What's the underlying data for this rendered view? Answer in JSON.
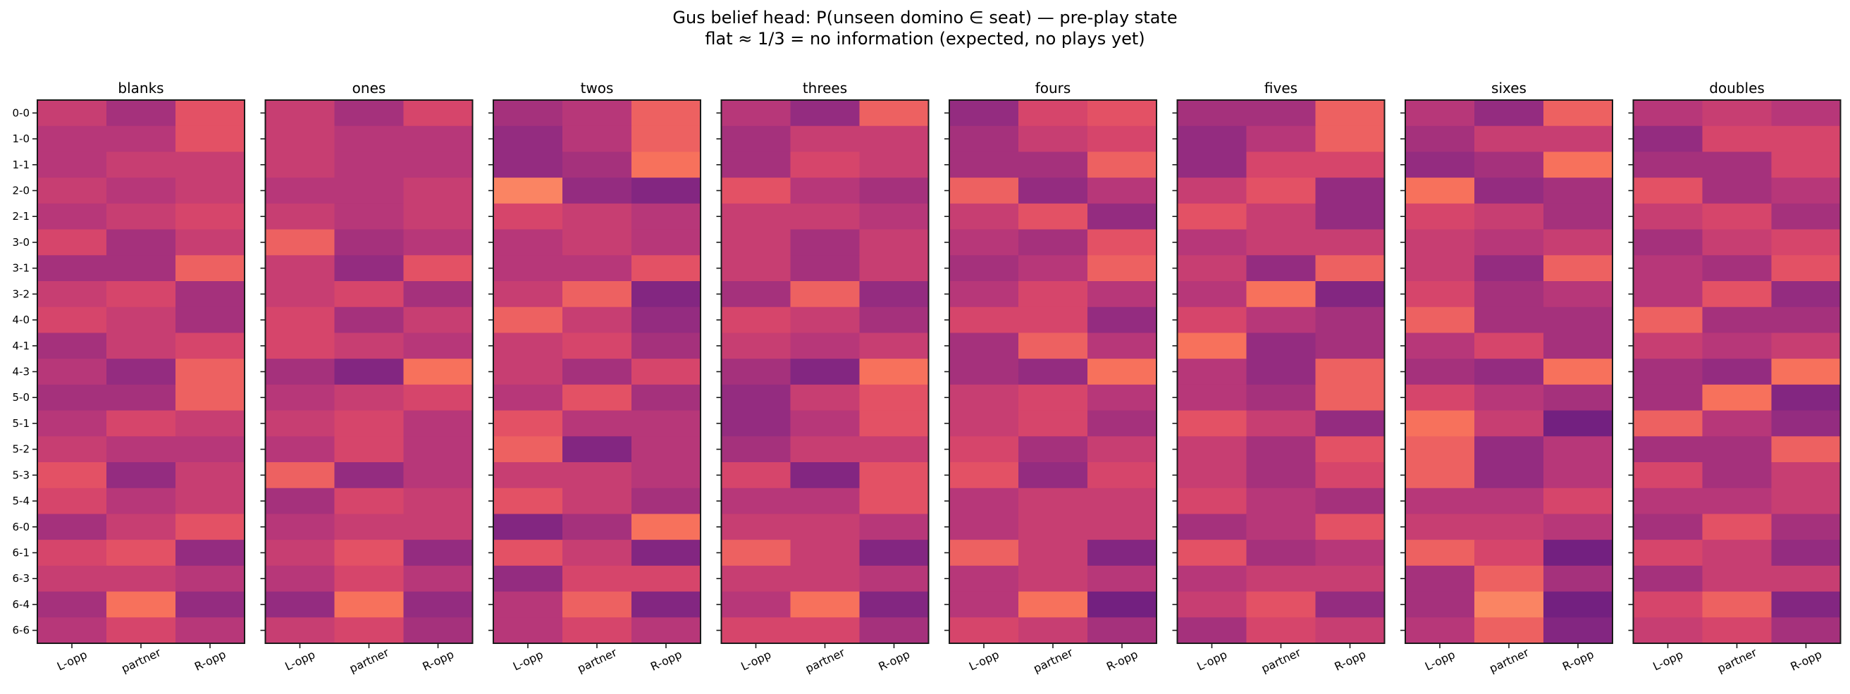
{
  "chart_data": {
    "type": "heatmap",
    "title_line1": "Gus belief head: P(unseen domino ∈ seat) — pre-play state",
    "title_line2": "flat ≈ 1/3 = no information (expected, no plays yet)",
    "colormap": "magma",
    "value_range_estimate": [
      0.29,
      0.38
    ],
    "columns": [
      "L-opp",
      "partner",
      "R-opp"
    ],
    "rows": [
      "0-0",
      "1-0",
      "1-1",
      "2-0",
      "2-1",
      "3-0",
      "3-1",
      "3-2",
      "4-0",
      "4-1",
      "4-3",
      "5-0",
      "5-1",
      "5-2",
      "5-3",
      "5-4",
      "6-0",
      "6-1",
      "6-3",
      "6-4",
      "6-6"
    ],
    "panels": [
      {
        "title": "blanks",
        "values": [
          [
            0.335,
            0.321,
            0.349
          ],
          [
            0.328,
            0.328,
            0.349
          ],
          [
            0.328,
            0.335,
            0.335
          ],
          [
            0.335,
            0.328,
            0.335
          ],
          [
            0.328,
            0.335,
            0.342
          ],
          [
            0.342,
            0.321,
            0.335
          ],
          [
            0.321,
            0.321,
            0.356
          ],
          [
            0.335,
            0.342,
            0.321
          ],
          [
            0.342,
            0.335,
            0.321
          ],
          [
            0.321,
            0.335,
            0.342
          ],
          [
            0.328,
            0.314,
            0.356
          ],
          [
            0.321,
            0.321,
            0.356
          ],
          [
            0.328,
            0.342,
            0.335
          ],
          [
            0.335,
            0.328,
            0.328
          ],
          [
            0.349,
            0.314,
            0.335
          ],
          [
            0.342,
            0.328,
            0.335
          ],
          [
            0.321,
            0.335,
            0.349
          ],
          [
            0.342,
            0.349,
            0.314
          ],
          [
            0.335,
            0.335,
            0.328
          ],
          [
            0.321,
            0.363,
            0.314
          ],
          [
            0.328,
            0.342,
            0.328
          ]
        ]
      },
      {
        "title": "ones",
        "values": [
          [
            0.335,
            0.321,
            0.342
          ],
          [
            0.335,
            0.328,
            0.328
          ],
          [
            0.335,
            0.328,
            0.328
          ],
          [
            0.328,
            0.328,
            0.335
          ],
          [
            0.335,
            0.328,
            0.335
          ],
          [
            0.356,
            0.321,
            0.328
          ],
          [
            0.335,
            0.314,
            0.349
          ],
          [
            0.335,
            0.342,
            0.321
          ],
          [
            0.342,
            0.321,
            0.335
          ],
          [
            0.342,
            0.335,
            0.328
          ],
          [
            0.321,
            0.307,
            0.363
          ],
          [
            0.328,
            0.335,
            0.342
          ],
          [
            0.335,
            0.342,
            0.328
          ],
          [
            0.328,
            0.342,
            0.328
          ],
          [
            0.356,
            0.314,
            0.328
          ],
          [
            0.321,
            0.342,
            0.335
          ],
          [
            0.328,
            0.335,
            0.335
          ],
          [
            0.335,
            0.349,
            0.314
          ],
          [
            0.328,
            0.342,
            0.328
          ],
          [
            0.314,
            0.363,
            0.314
          ],
          [
            0.335,
            0.342,
            0.321
          ]
        ]
      },
      {
        "title": "twos",
        "values": [
          [
            0.321,
            0.328,
            0.356
          ],
          [
            0.314,
            0.328,
            0.356
          ],
          [
            0.314,
            0.321,
            0.363
          ],
          [
            0.37,
            0.314,
            0.307
          ],
          [
            0.342,
            0.335,
            0.328
          ],
          [
            0.328,
            0.335,
            0.328
          ],
          [
            0.328,
            0.328,
            0.349
          ],
          [
            0.335,
            0.356,
            0.307
          ],
          [
            0.356,
            0.335,
            0.314
          ],
          [
            0.335,
            0.342,
            0.321
          ],
          [
            0.335,
            0.321,
            0.342
          ],
          [
            0.328,
            0.349,
            0.321
          ],
          [
            0.349,
            0.328,
            0.328
          ],
          [
            0.356,
            0.307,
            0.328
          ],
          [
            0.335,
            0.335,
            0.328
          ],
          [
            0.349,
            0.335,
            0.321
          ],
          [
            0.307,
            0.321,
            0.363
          ],
          [
            0.349,
            0.335,
            0.307
          ],
          [
            0.314,
            0.342,
            0.342
          ],
          [
            0.328,
            0.356,
            0.307
          ],
          [
            0.328,
            0.342,
            0.328
          ]
        ]
      },
      {
        "title": "threes",
        "values": [
          [
            0.328,
            0.314,
            0.356
          ],
          [
            0.321,
            0.335,
            0.335
          ],
          [
            0.321,
            0.342,
            0.335
          ],
          [
            0.349,
            0.328,
            0.321
          ],
          [
            0.335,
            0.335,
            0.328
          ],
          [
            0.335,
            0.321,
            0.335
          ],
          [
            0.335,
            0.321,
            0.335
          ],
          [
            0.321,
            0.356,
            0.314
          ],
          [
            0.342,
            0.335,
            0.321
          ],
          [
            0.335,
            0.328,
            0.335
          ],
          [
            0.321,
            0.307,
            0.363
          ],
          [
            0.314,
            0.335,
            0.349
          ],
          [
            0.314,
            0.328,
            0.349
          ],
          [
            0.321,
            0.335,
            0.335
          ],
          [
            0.342,
            0.307,
            0.349
          ],
          [
            0.328,
            0.328,
            0.349
          ],
          [
            0.335,
            0.335,
            0.328
          ],
          [
            0.356,
            0.335,
            0.307
          ],
          [
            0.335,
            0.335,
            0.328
          ],
          [
            0.328,
            0.363,
            0.307
          ],
          [
            0.342,
            0.342,
            0.321
          ]
        ]
      },
      {
        "title": "fours",
        "values": [
          [
            0.314,
            0.342,
            0.349
          ],
          [
            0.321,
            0.335,
            0.342
          ],
          [
            0.321,
            0.321,
            0.356
          ],
          [
            0.356,
            0.314,
            0.328
          ],
          [
            0.335,
            0.349,
            0.314
          ],
          [
            0.328,
            0.321,
            0.349
          ],
          [
            0.321,
            0.328,
            0.356
          ],
          [
            0.328,
            0.342,
            0.328
          ],
          [
            0.342,
            0.342,
            0.314
          ],
          [
            0.321,
            0.356,
            0.328
          ],
          [
            0.321,
            0.314,
            0.363
          ],
          [
            0.335,
            0.342,
            0.328
          ],
          [
            0.335,
            0.342,
            0.321
          ],
          [
            0.342,
            0.321,
            0.335
          ],
          [
            0.349,
            0.314,
            0.342
          ],
          [
            0.328,
            0.335,
            0.335
          ],
          [
            0.328,
            0.335,
            0.335
          ],
          [
            0.356,
            0.335,
            0.307
          ],
          [
            0.328,
            0.335,
            0.328
          ],
          [
            0.328,
            0.363,
            0.3
          ],
          [
            0.342,
            0.335,
            0.321
          ]
        ]
      },
      {
        "title": "fives",
        "values": [
          [
            0.321,
            0.321,
            0.356
          ],
          [
            0.314,
            0.328,
            0.356
          ],
          [
            0.314,
            0.342,
            0.342
          ],
          [
            0.335,
            0.349,
            0.314
          ],
          [
            0.349,
            0.335,
            0.314
          ],
          [
            0.328,
            0.335,
            0.335
          ],
          [
            0.335,
            0.314,
            0.356
          ],
          [
            0.328,
            0.363,
            0.307
          ],
          [
            0.342,
            0.328,
            0.321
          ],
          [
            0.363,
            0.314,
            0.321
          ],
          [
            0.328,
            0.314,
            0.356
          ],
          [
            0.328,
            0.321,
            0.356
          ],
          [
            0.349,
            0.335,
            0.314
          ],
          [
            0.335,
            0.321,
            0.349
          ],
          [
            0.335,
            0.321,
            0.342
          ],
          [
            0.342,
            0.328,
            0.321
          ],
          [
            0.321,
            0.328,
            0.349
          ],
          [
            0.349,
            0.321,
            0.328
          ],
          [
            0.328,
            0.335,
            0.335
          ],
          [
            0.335,
            0.349,
            0.314
          ],
          [
            0.321,
            0.342,
            0.335
          ]
        ]
      },
      {
        "title": "sixes",
        "values": [
          [
            0.328,
            0.314,
            0.356
          ],
          [
            0.321,
            0.335,
            0.335
          ],
          [
            0.314,
            0.321,
            0.363
          ],
          [
            0.363,
            0.314,
            0.321
          ],
          [
            0.342,
            0.335,
            0.321
          ],
          [
            0.335,
            0.328,
            0.335
          ],
          [
            0.335,
            0.314,
            0.356
          ],
          [
            0.342,
            0.321,
            0.328
          ],
          [
            0.356,
            0.321,
            0.321
          ],
          [
            0.328,
            0.342,
            0.321
          ],
          [
            0.321,
            0.314,
            0.363
          ],
          [
            0.342,
            0.328,
            0.321
          ],
          [
            0.363,
            0.335,
            0.3
          ],
          [
            0.356,
            0.314,
            0.328
          ],
          [
            0.356,
            0.314,
            0.328
          ],
          [
            0.328,
            0.328,
            0.342
          ],
          [
            0.335,
            0.335,
            0.328
          ],
          [
            0.356,
            0.342,
            0.3
          ],
          [
            0.321,
            0.356,
            0.321
          ],
          [
            0.321,
            0.37,
            0.3
          ],
          [
            0.328,
            0.356,
            0.307
          ]
        ]
      },
      {
        "title": "doubles",
        "values": [
          [
            0.328,
            0.335,
            0.328
          ],
          [
            0.314,
            0.342,
            0.342
          ],
          [
            0.321,
            0.321,
            0.342
          ],
          [
            0.349,
            0.321,
            0.328
          ],
          [
            0.335,
            0.342,
            0.321
          ],
          [
            0.321,
            0.335,
            0.342
          ],
          [
            0.328,
            0.321,
            0.349
          ],
          [
            0.328,
            0.349,
            0.314
          ],
          [
            0.356,
            0.321,
            0.321
          ],
          [
            0.335,
            0.328,
            0.335
          ],
          [
            0.321,
            0.314,
            0.363
          ],
          [
            0.321,
            0.363,
            0.307
          ],
          [
            0.356,
            0.328,
            0.314
          ],
          [
            0.321,
            0.321,
            0.356
          ],
          [
            0.342,
            0.321,
            0.335
          ],
          [
            0.328,
            0.328,
            0.335
          ],
          [
            0.321,
            0.349,
            0.321
          ],
          [
            0.342,
            0.335,
            0.314
          ],
          [
            0.321,
            0.335,
            0.335
          ],
          [
            0.342,
            0.356,
            0.307
          ],
          [
            0.335,
            0.342,
            0.321
          ]
        ]
      }
    ]
  }
}
